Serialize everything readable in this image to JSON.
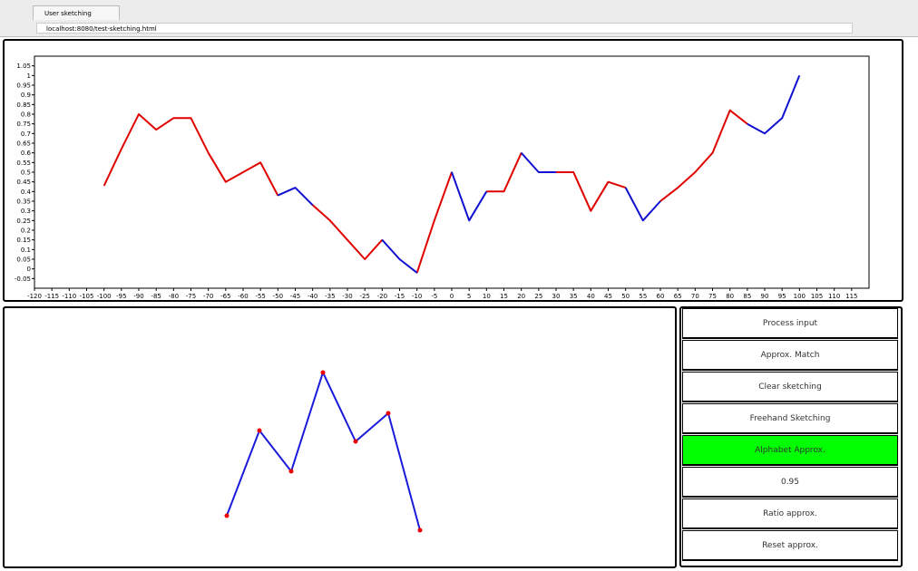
{
  "browser": {
    "tab_title": "User sketching",
    "url": "localhost:8080/test-sketching.html"
  },
  "chart_data": {
    "type": "line",
    "x": [
      -100,
      -95,
      -90,
      -85,
      -80,
      -75,
      -70,
      -65,
      -60,
      -55,
      -50,
      -45,
      -40,
      -35,
      -30,
      -25,
      -20,
      -15,
      -10,
      -5,
      0,
      5,
      10,
      15,
      20,
      25,
      30,
      35,
      40,
      45,
      50,
      55,
      60,
      65,
      70,
      75,
      80,
      85,
      90,
      95,
      100
    ],
    "series": [
      {
        "color": "#000000",
        "values": [
          0.43,
          0.62,
          0.8,
          0.72,
          0.78,
          0.78,
          0.6,
          0.45,
          0.5,
          0.55,
          0.38,
          0.42,
          0.33,
          0.25,
          0.15,
          0.05,
          0.15,
          0.05,
          -0.02,
          0.25,
          0.5,
          0.25,
          0.4,
          0.4,
          0.6,
          0.5,
          0.5,
          0.5,
          0.3,
          0.45,
          0.42,
          0.25,
          0.35,
          0.42,
          0.5,
          0.6,
          0.82,
          0.75,
          0.7,
          0.78,
          1.0
        ]
      },
      {
        "color": "#e00000",
        "values": [
          0.43,
          0.62,
          0.8,
          0.72,
          0.78,
          0.78,
          0.6,
          0.45,
          0.5,
          0.55,
          0.38,
          null,
          0.33,
          0.25,
          0.15,
          0.05,
          0.15,
          null,
          -0.02,
          0.25,
          0.5,
          null,
          0.4,
          0.4,
          0.6,
          null,
          0.5,
          0.5,
          0.3,
          0.45,
          0.42,
          null,
          0.35,
          0.42,
          0.5,
          0.6,
          0.82,
          0.75,
          null,
          null,
          null
        ]
      },
      {
        "color": "#1010d0",
        "values": [
          null,
          null,
          null,
          null,
          null,
          null,
          null,
          null,
          null,
          null,
          0.38,
          0.42,
          0.33,
          null,
          null,
          null,
          0.15,
          0.05,
          -0.02,
          null,
          0.5,
          0.25,
          0.4,
          null,
          0.6,
          0.5,
          0.5,
          null,
          null,
          null,
          0.42,
          0.25,
          0.35,
          null,
          null,
          null,
          null,
          0.75,
          0.7,
          0.78,
          1.0
        ]
      }
    ],
    "xlim": [
      -120,
      120
    ],
    "ylim": [
      -0.1,
      1.1
    ],
    "xticks": [
      -120,
      -115,
      -110,
      -105,
      -100,
      -95,
      -90,
      -85,
      -80,
      -75,
      -70,
      -65,
      -60,
      -55,
      -50,
      -45,
      -40,
      -35,
      -30,
      -25,
      -20,
      -15,
      -10,
      -5,
      0,
      5,
      10,
      15,
      20,
      25,
      30,
      35,
      40,
      45,
      50,
      55,
      60,
      65,
      70,
      75,
      80,
      85,
      90,
      95,
      100,
      105,
      110,
      115
    ],
    "yticks": [
      -0.05,
      0,
      0.05,
      0.1,
      0.15,
      0.2,
      0.25,
      0.3,
      0.35,
      0.4,
      0.45,
      0.5,
      0.55,
      0.6,
      0.65,
      0.7,
      0.75,
      0.8,
      0.85,
      0.9,
      0.95,
      1,
      1.05
    ]
  },
  "buttons": [
    "Process input",
    "Approx. Match",
    "Clear sketching",
    "Freehand Sketching",
    "Alphabet Approx.",
    "0.95",
    "Ratio approx.",
    "Reset approx."
  ]
}
